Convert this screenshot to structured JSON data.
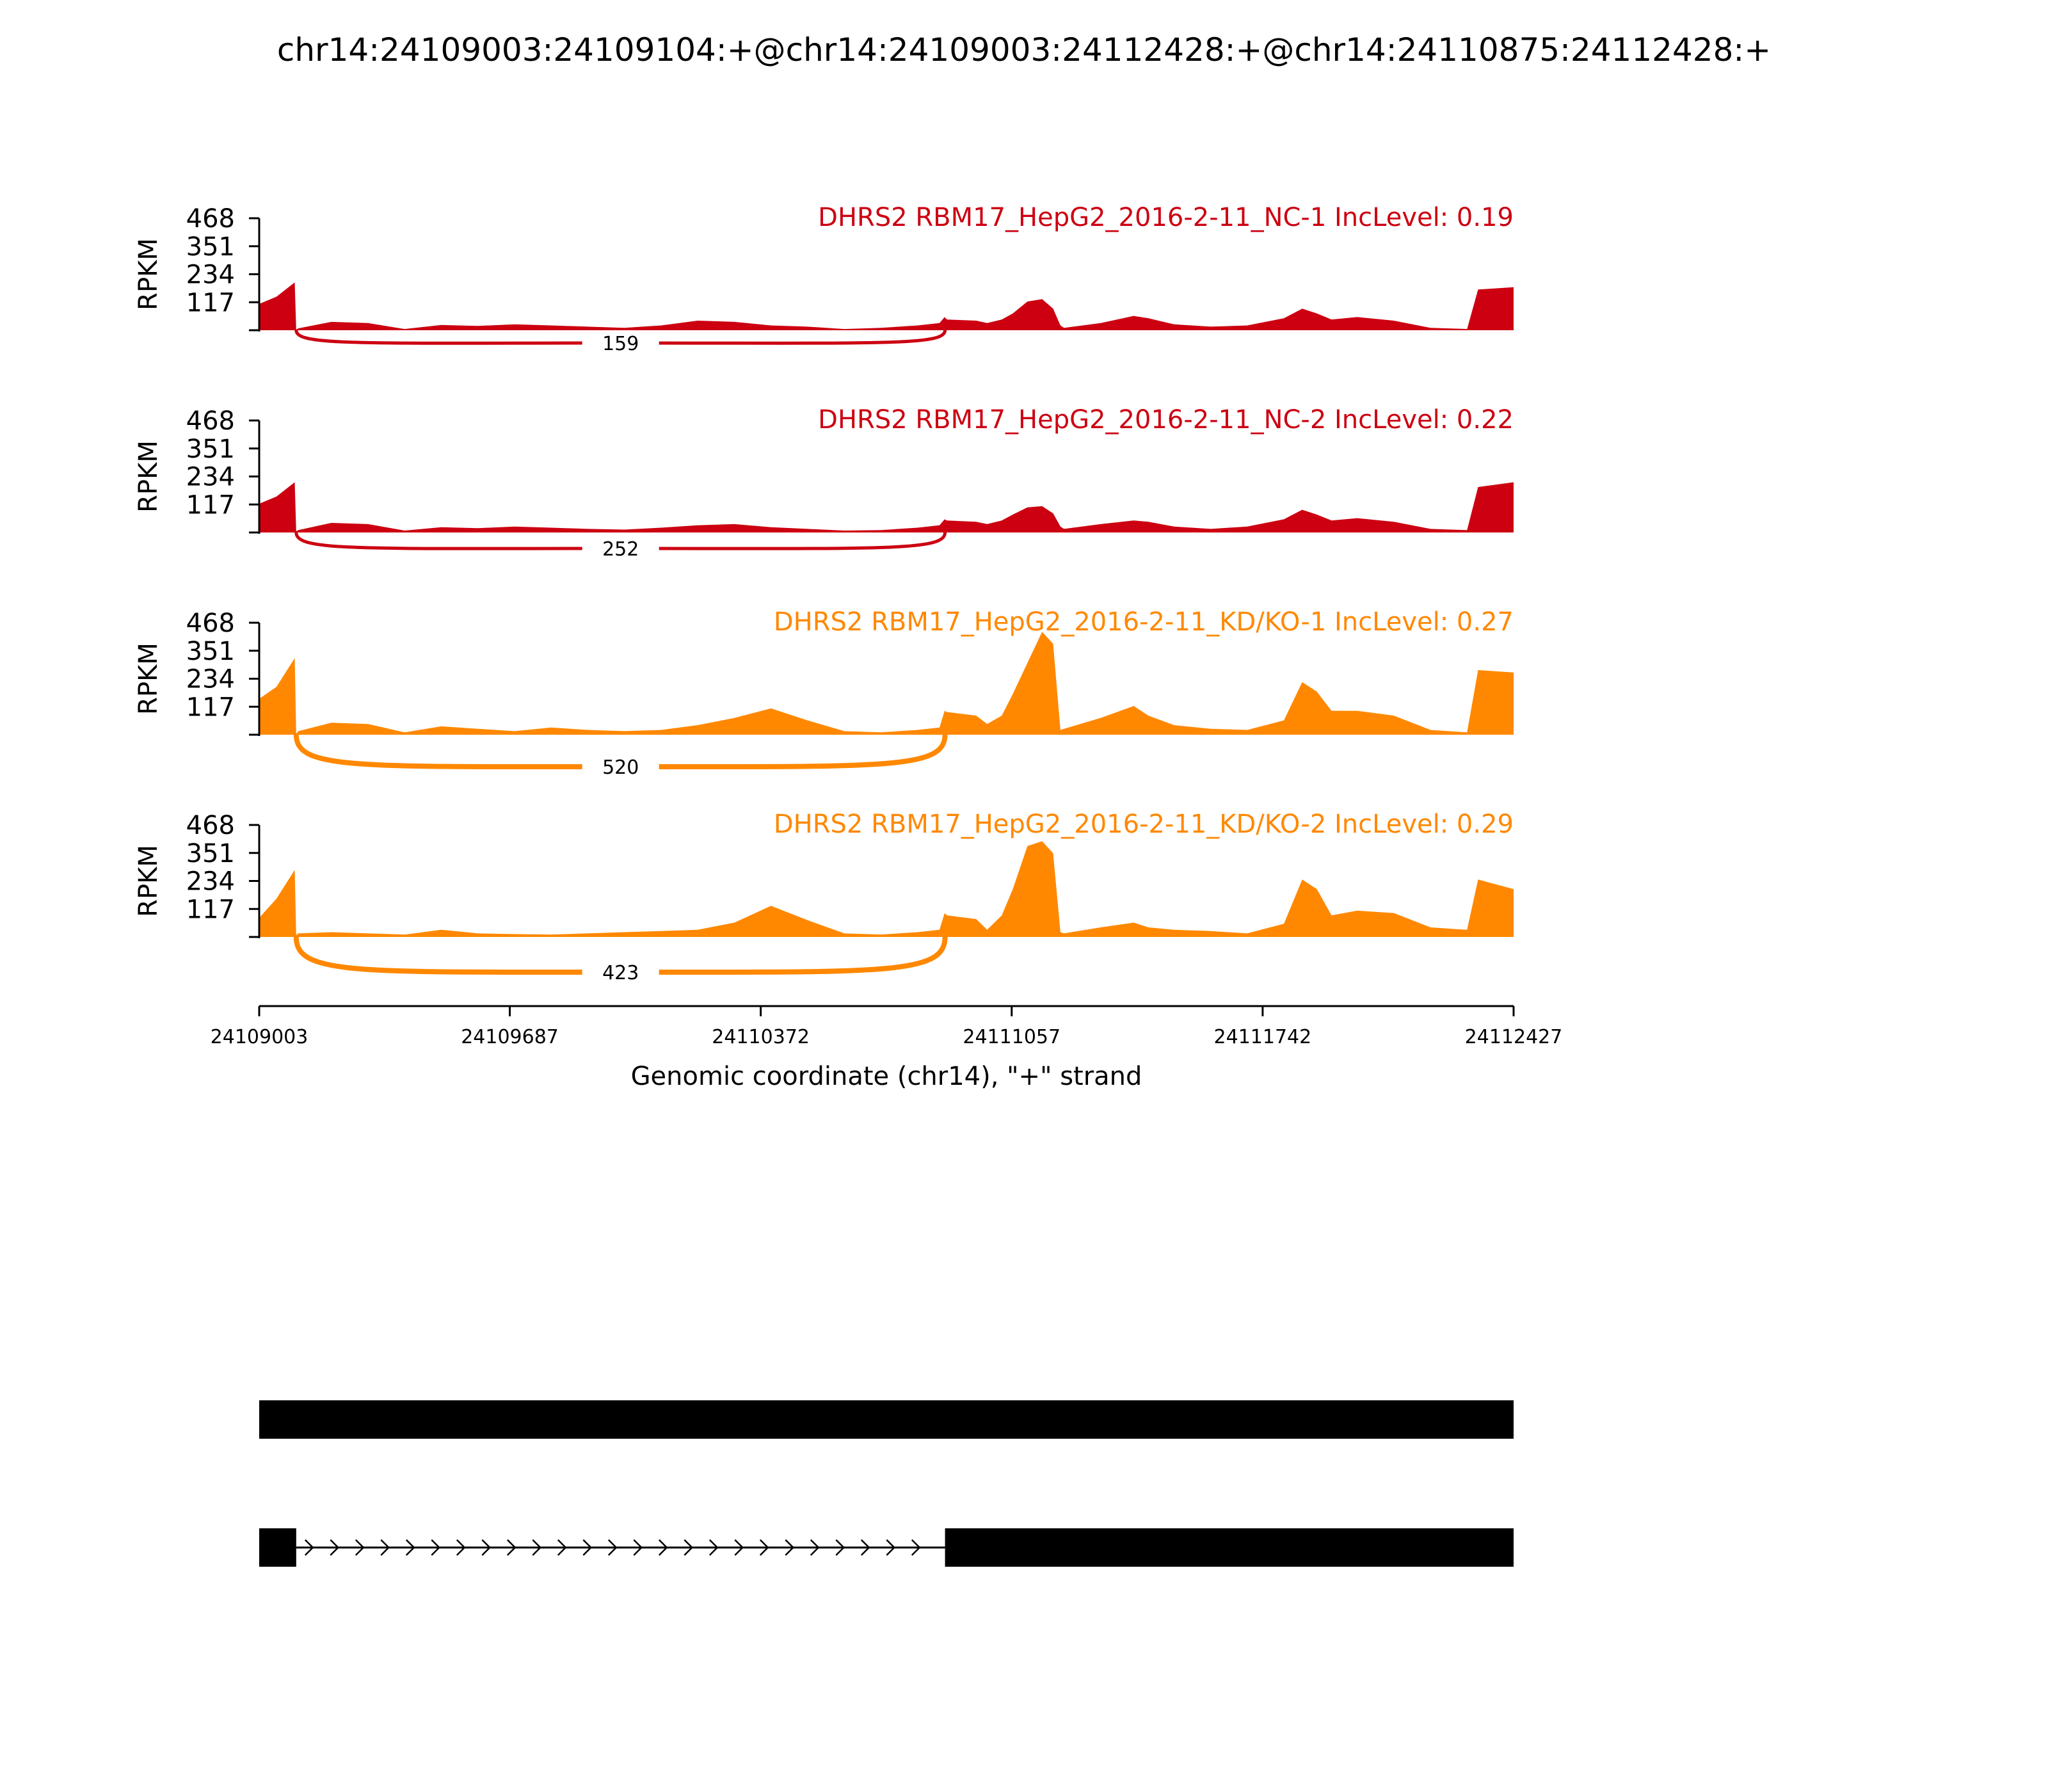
{
  "chart_data": {
    "type": "area",
    "title": "chr14:24109003:24109104:+@chr14:24109003:24112428:+@chr14:24110875:24112428:+",
    "xlabel": "Genomic coordinate (chr14), \"+\" strand",
    "ylabel": "RPKM",
    "xlim": [
      24109003,
      24112427
    ],
    "ylim": [
      0,
      468
    ],
    "xticks": [
      "24109003",
      "24109687",
      "24110372",
      "24111057",
      "24111742",
      "24112427"
    ],
    "yticks": [
      "117",
      "234",
      "351",
      "468"
    ],
    "colors": {
      "NC": "#cc0011",
      "KD": "#ff8800",
      "gene": "#000000"
    },
    "profile_x": [
      24109003,
      24109050,
      24109100,
      24109104,
      24109110,
      24109200,
      24109300,
      24109400,
      24109500,
      24109600,
      24109700,
      24109800,
      24109900,
      24110000,
      24110100,
      24110200,
      24110300,
      24110400,
      24110500,
      24110600,
      24110700,
      24110800,
      24110860,
      24110874,
      24110880,
      24110960,
      24110990,
      24111030,
      24111060,
      24111100,
      24111140,
      24111170,
      24111190,
      24111200,
      24111300,
      24111390,
      24111430,
      24111500,
      24111600,
      24111700,
      24111800,
      24111850,
      24111890,
      24111930,
      24112000,
      24112100,
      24112200,
      24112300,
      24112330,
      24112427
    ],
    "series": [
      {
        "name": "DHRS2 RBM17_HepG2_2016-2-11_NC-1",
        "label": "DHRS2 RBM17_HepG2_2016-2-11_NC-1 IncLevel: 0.19",
        "group": "NC",
        "junction_count": "159",
        "values": [
          110,
          140,
          200,
          3,
          8,
          35,
          30,
          5,
          22,
          18,
          25,
          20,
          15,
          10,
          20,
          40,
          35,
          20,
          15,
          5,
          10,
          20,
          30,
          55,
          45,
          40,
          30,
          45,
          70,
          120,
          130,
          90,
          20,
          10,
          30,
          60,
          50,
          25,
          15,
          20,
          50,
          90,
          70,
          45,
          55,
          40,
          10,
          5,
          170,
          180
        ]
      },
      {
        "name": "DHRS2 RBM17_HepG2_2016-2-11_NC-2",
        "label": "DHRS2 RBM17_HepG2_2016-2-11_NC-2 IncLevel: 0.22",
        "group": "NC",
        "junction_count": "252",
        "values": [
          120,
          150,
          210,
          5,
          10,
          40,
          35,
          8,
          22,
          18,
          25,
          20,
          15,
          12,
          20,
          30,
          35,
          22,
          15,
          8,
          10,
          20,
          30,
          55,
          50,
          45,
          35,
          50,
          75,
          105,
          110,
          80,
          25,
          15,
          35,
          50,
          45,
          25,
          15,
          25,
          55,
          95,
          75,
          50,
          60,
          45,
          15,
          10,
          190,
          210
        ]
      },
      {
        "name": "DHRS2 RBM17_HepG2_2016-2-11_KD/KO-1",
        "label": "DHRS2 RBM17_HepG2_2016-2-11_KD/KO-1 IncLevel: 0.27",
        "group": "KD",
        "junction_count": "520",
        "values": [
          150,
          200,
          320,
          5,
          15,
          50,
          45,
          10,
          35,
          25,
          15,
          30,
          20,
          15,
          20,
          40,
          70,
          110,
          60,
          15,
          10,
          20,
          30,
          100,
          95,
          80,
          45,
          80,
          170,
          300,
          430,
          380,
          20,
          25,
          70,
          120,
          80,
          40,
          25,
          20,
          60,
          220,
          180,
          100,
          100,
          80,
          20,
          10,
          270,
          260
        ]
      },
      {
        "name": "DHRS2 RBM17_HepG2_2016-2-11_KD/KO-2",
        "label": "DHRS2 RBM17_HepG2_2016-2-11_KD/KO-2 IncLevel: 0.29",
        "group": "KD",
        "junction_count": "423",
        "values": [
          80,
          160,
          280,
          8,
          15,
          20,
          15,
          10,
          30,
          15,
          12,
          10,
          15,
          20,
          25,
          30,
          60,
          130,
          70,
          15,
          10,
          20,
          30,
          100,
          90,
          75,
          30,
          90,
          200,
          380,
          400,
          350,
          20,
          15,
          40,
          60,
          40,
          30,
          25,
          15,
          55,
          240,
          200,
          90,
          110,
          100,
          40,
          30,
          240,
          200
        ]
      }
    ],
    "junction": {
      "start": 24109104,
      "end": 24110875
    },
    "isoforms": [
      {
        "exons": [
          [
            24109003,
            24112427
          ]
        ]
      },
      {
        "exons": [
          [
            24109003,
            24109104
          ],
          [
            24110875,
            24112427
          ]
        ]
      }
    ]
  }
}
